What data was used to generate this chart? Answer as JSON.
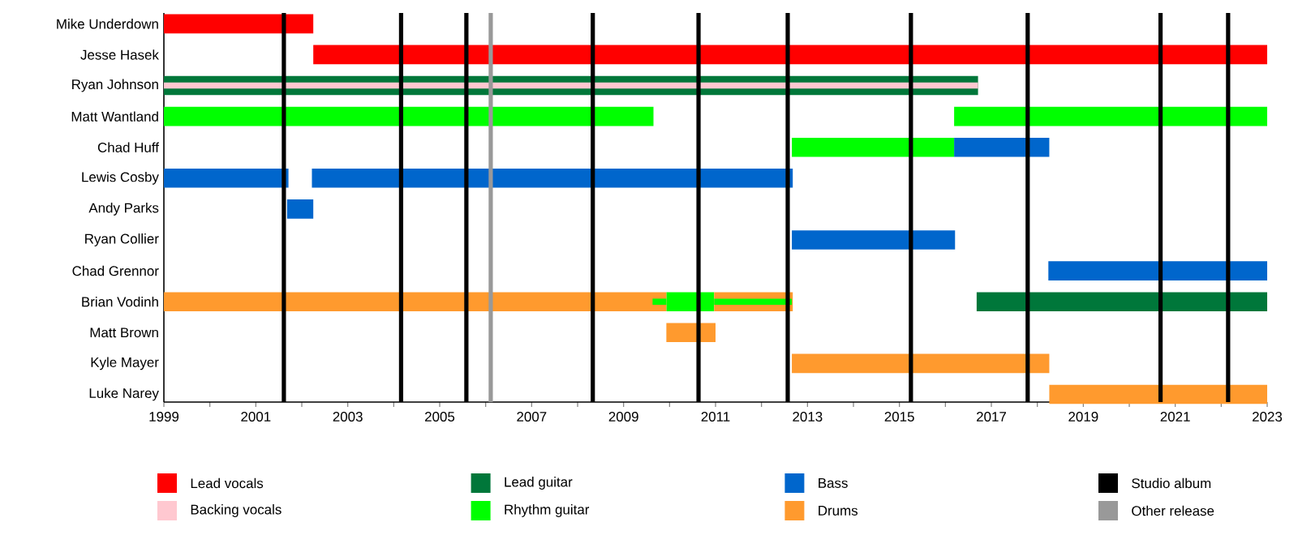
{
  "chart_data": {
    "type": "bar",
    "orientation": "horizontal",
    "legend": "bottom",
    "categories": [
      "Mike Underdown",
      "Jesse Hasek",
      "Ryan Johnson",
      "Matt Wantland",
      "Chad Huff",
      "Lewis Cosby",
      "Andy Parks",
      "Ryan Collier",
      "Chad Grennor",
      "Brian Vodinh",
      "Matt Brown",
      "Kyle Mayer",
      "Luke Narey"
    ],
    "xlim": [
      1999,
      2023
    ],
    "xticks": [
      1999,
      {
        "value": 2000,
        "label": null
      },
      2001,
      {
        "value": 2002,
        "label": null
      },
      2003,
      {
        "value": 2004,
        "label": null
      },
      2005,
      {
        "value": 2006,
        "label": null
      },
      2007,
      {
        "value": 2008,
        "label": null
      },
      2009,
      {
        "value": 2010,
        "label": null
      },
      2011,
      {
        "value": 2012,
        "label": null
      },
      2013,
      {
        "value": 2014,
        "label": null
      },
      2015,
      {
        "value": 2016,
        "label": null
      },
      2017,
      {
        "value": 2018,
        "label": null
      },
      2019,
      {
        "value": 2020,
        "label": null
      },
      2021,
      {
        "value": 2022,
        "label": null
      },
      2023
    ],
    "series": [
      {
        "name": "Lead vocals",
        "color": "#ff0000",
        "base": [
          1999,
          2002.25,
          null,
          null,
          null,
          null,
          null,
          null,
          null,
          null,
          null,
          null,
          null
        ],
        "values": [
          3.25,
          20.75,
          null,
          null,
          null,
          null,
          null,
          null,
          null,
          null,
          null,
          null,
          null
        ]
      },
      {
        "name": "Backing vocals",
        "color": "#ffc8d0",
        "base": [
          null,
          null,
          1999,
          null,
          null,
          null,
          null,
          null,
          null,
          null,
          null,
          null,
          null
        ],
        "values": [
          null,
          null,
          17.71,
          null,
          null,
          null,
          null,
          null,
          null,
          null,
          null,
          null,
          null
        ]
      },
      {
        "name": "Lead guitar",
        "color": "#00773a",
        "base": [
          null,
          null,
          1999,
          null,
          null,
          null,
          null,
          null,
          null,
          2016.68,
          null,
          null,
          null
        ],
        "values": [
          null,
          null,
          17.71,
          null,
          null,
          null,
          null,
          null,
          null,
          6.32,
          null,
          null,
          null
        ]
      },
      {
        "name": "Rhythm guitar",
        "color": "#00ff00",
        "base": [
          null,
          null,
          null,
          1999,
          2012.66,
          null,
          null,
          null,
          null,
          2009.93,
          null,
          null,
          null
        ],
        "values": [
          null,
          null,
          null,
          10.65,
          3.53,
          null,
          null,
          null,
          null,
          1.04,
          null,
          null,
          null
        ]
      },
      {
        "name": "Bass",
        "color": "#0066cc",
        "base": [
          null,
          null,
          null,
          null,
          2016.19,
          1999,
          2001.68,
          2012.66,
          2018.24,
          null,
          null,
          null,
          null
        ],
        "values": [
          null,
          null,
          null,
          null,
          2.07,
          2.71,
          0.57,
          3.55,
          4.76,
          null,
          null,
          null,
          null
        ]
      },
      {
        "name": "Drums",
        "color": "#ff9a2e",
        "base": [
          null,
          null,
          null,
          null,
          null,
          null,
          null,
          null,
          null,
          1999,
          2009.93,
          2012.66,
          2018.26
        ],
        "values": [
          null,
          null,
          null,
          null,
          null,
          null,
          null,
          null,
          null,
          10.93,
          1.07,
          5.6,
          4.74
        ]
      },
      {
        "color": "#00ff00",
        "base": [
          null,
          null,
          null,
          2016.19,
          null,
          null,
          null,
          null,
          null,
          2009.63,
          null,
          null,
          null
        ],
        "values": [
          null,
          null,
          null,
          6.81,
          null,
          null,
          null,
          null,
          null,
          0.3,
          null,
          null,
          null
        ]
      },
      {
        "color": "#0066cc",
        "base": [
          null,
          null,
          null,
          null,
          null,
          2002.22,
          null,
          null,
          null,
          null,
          null,
          null,
          null
        ],
        "values": [
          null,
          null,
          null,
          null,
          null,
          10.46,
          null,
          null,
          null,
          null,
          null,
          null,
          null
        ]
      },
      {
        "color": "#ff9a2e",
        "base": [
          null,
          null,
          null,
          null,
          null,
          null,
          null,
          null,
          null,
          2010.97,
          null,
          null,
          null
        ],
        "values": [
          null,
          null,
          null,
          null,
          null,
          null,
          null,
          null,
          null,
          1.71,
          null,
          null,
          null
        ]
      },
      {
        "color": "#00ff00",
        "base": [
          null,
          null,
          null,
          null,
          null,
          null,
          null,
          null,
          null,
          2010.97,
          null,
          null,
          null
        ],
        "values": [
          null,
          null,
          null,
          null,
          null,
          null,
          null,
          null,
          null,
          1.69,
          null,
          null,
          null
        ]
      }
    ],
    "ref_lines": [
      {
        "axis": "x",
        "value": 2001.61,
        "label": "Studio album",
        "color": "#000000"
      },
      {
        "axis": "x",
        "value": 2004.16,
        "color": "#000000"
      },
      {
        "axis": "x",
        "value": 2005.58,
        "color": "#000000"
      },
      {
        "axis": "x",
        "value": 2006.11,
        "label": "Other release",
        "color": "#999999"
      },
      {
        "axis": "x",
        "value": 2008.33,
        "color": "#000000"
      },
      {
        "axis": "x",
        "value": 2010.63,
        "color": "#000000"
      },
      {
        "axis": "x",
        "value": 2012.57,
        "color": "#000000"
      },
      {
        "axis": "x",
        "value": 2015.25,
        "color": "#000000"
      },
      {
        "axis": "x",
        "value": 2017.79,
        "color": "#000000"
      },
      {
        "axis": "x",
        "value": 2020.68,
        "color": "#000000"
      },
      {
        "axis": "x",
        "value": 2022.15,
        "color": "#000000"
      }
    ]
  }
}
